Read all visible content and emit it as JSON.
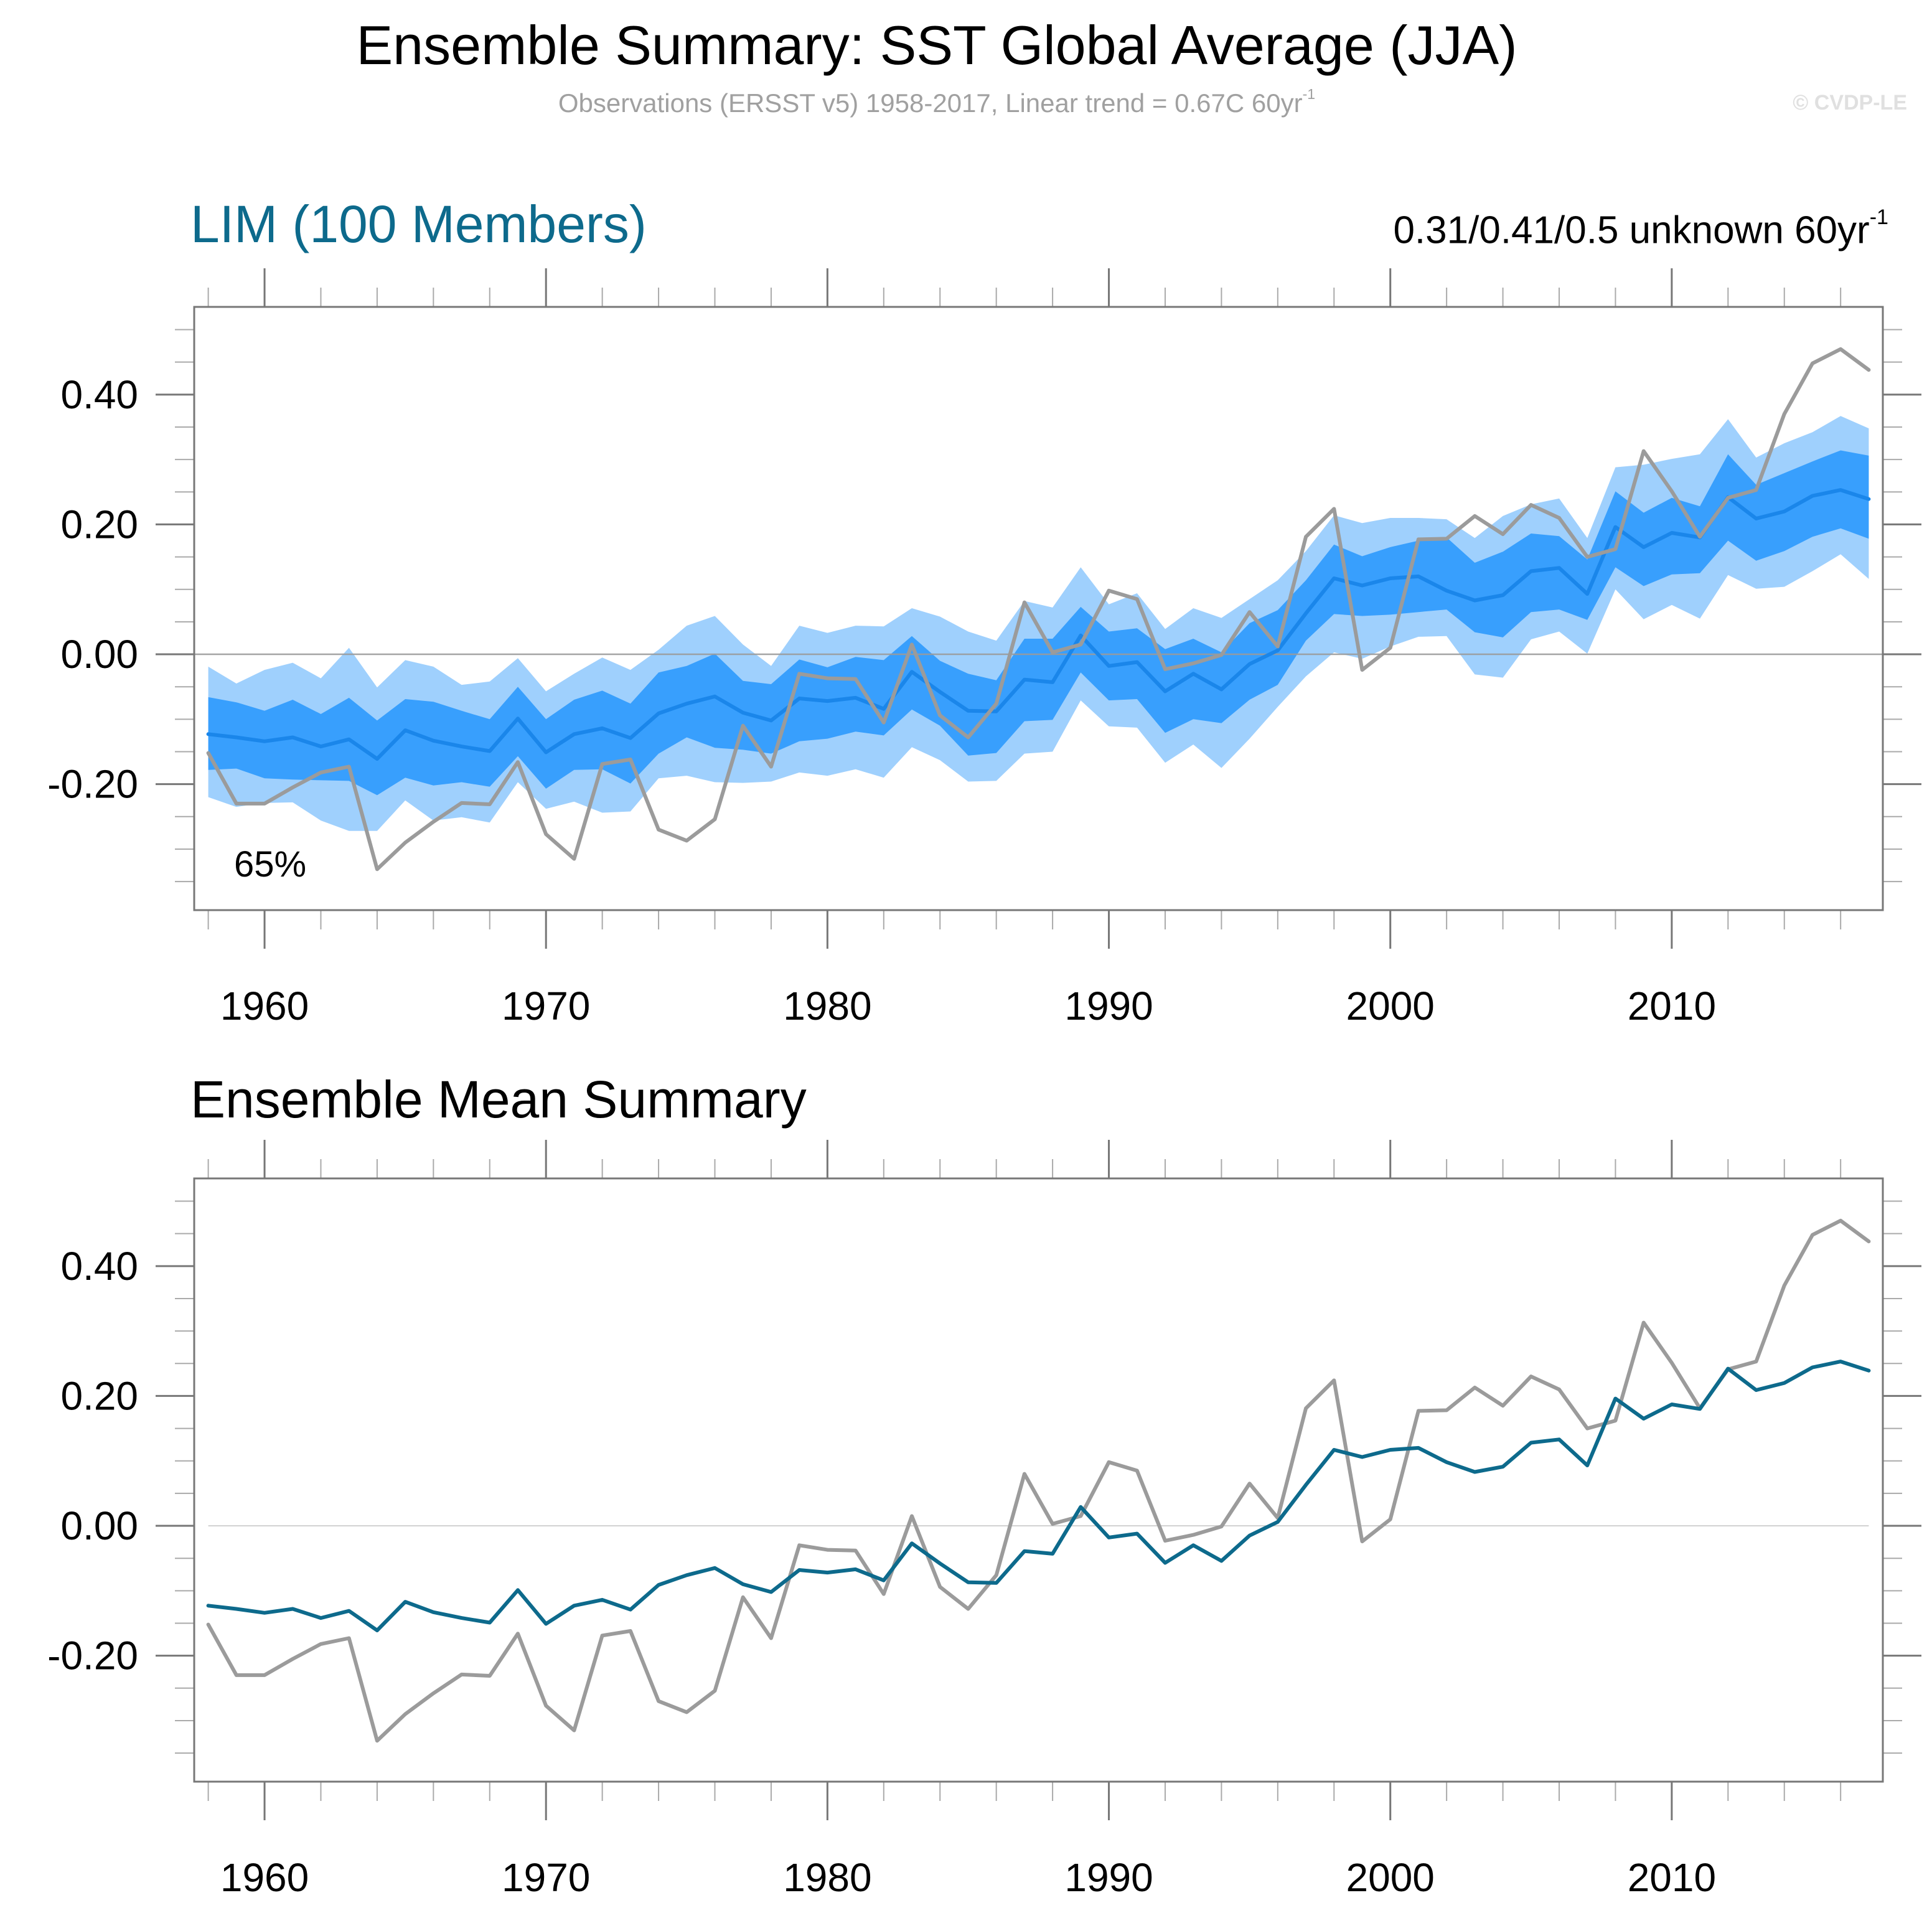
{
  "header": {
    "title": "Ensemble Summary: SST Global Average (JJA)",
    "subtitle": "Observations (ERSST v5) 1958-2017, Linear trend = 0.67C 60yr",
    "subtitle_sup": "-1",
    "copyright": "© CVDP-LE"
  },
  "colors": {
    "light_band": "#9fd0fd",
    "dark_band": "#389ffd",
    "ens_median_line": "#1a86ea",
    "ens_mean_line": "#0d6a8c",
    "obs_line": "#9b9b9b",
    "zero_line": "#9b9b9b",
    "frame": "#777777"
  },
  "chart_data": [
    {
      "type": "area",
      "panel": "ensemble-summary",
      "title": "LIM (100 Members)",
      "trend_text": "0.31/0.41/0.5 unknown 60yr",
      "trend_sup": "-1",
      "annotation": "65%",
      "xlim": [
        1957.5,
        2017.5
      ],
      "ylim": [
        -0.394,
        0.535
      ],
      "xticks": [
        1960,
        1970,
        1980,
        1990,
        2000,
        2010
      ],
      "xtick_labels": [
        "1960",
        "1970",
        "1980",
        "1990",
        "2000",
        "2010"
      ],
      "yticks": [
        -0.2,
        0.0,
        0.2,
        0.4
      ],
      "ytick_labels": [
        "-0.20",
        "0.00",
        "0.20",
        "0.40"
      ],
      "x": [
        1958,
        1959,
        1960,
        1961,
        1962,
        1963,
        1964,
        1965,
        1966,
        1967,
        1968,
        1969,
        1970,
        1971,
        1972,
        1973,
        1974,
        1975,
        1976,
        1977,
        1978,
        1979,
        1980,
        1981,
        1982,
        1983,
        1984,
        1985,
        1986,
        1987,
        1988,
        1989,
        1990,
        1991,
        1992,
        1993,
        1994,
        1995,
        1996,
        1997,
        1998,
        1999,
        2000,
        2001,
        2002,
        2003,
        2004,
        2005,
        2006,
        2007,
        2008,
        2009,
        2010,
        2011,
        2012,
        2013,
        2014,
        2015,
        2016,
        2017
      ],
      "series": [
        {
          "name": "ensemble upper (light)",
          "values": [
            -0.019,
            -0.045,
            -0.024,
            -0.013,
            -0.037,
            0.01,
            -0.051,
            -0.009,
            -0.019,
            -0.047,
            -0.042,
            -0.006,
            -0.057,
            -0.03,
            -0.005,
            -0.024,
            0.007,
            0.044,
            0.059,
            0.015,
            -0.018,
            0.044,
            0.033,
            0.044,
            0.043,
            0.071,
            0.058,
            0.035,
            0.021,
            0.082,
            0.072,
            0.134,
            0.077,
            0.094,
            0.039,
            0.071,
            0.056,
            0.085,
            0.114,
            0.159,
            0.214,
            0.202,
            0.21,
            0.21,
            0.208,
            0.179,
            0.213,
            0.231,
            0.24,
            0.179,
            0.288,
            0.292,
            0.301,
            0.308,
            0.362,
            0.303,
            0.325,
            0.342,
            0.367,
            0.348
          ]
        },
        {
          "name": "ensemble upper (dark)",
          "values": [
            -0.066,
            -0.074,
            -0.087,
            -0.07,
            -0.092,
            -0.067,
            -0.102,
            -0.069,
            -0.073,
            -0.087,
            -0.1,
            -0.05,
            -0.1,
            -0.07,
            -0.056,
            -0.076,
            -0.028,
            -0.018,
            0.001,
            -0.041,
            -0.046,
            -0.008,
            -0.02,
            -0.004,
            -0.009,
            0.028,
            -0.01,
            -0.03,
            -0.04,
            0.024,
            0.024,
            0.073,
            0.035,
            0.04,
            0.008,
            0.024,
            0.003,
            0.048,
            0.068,
            0.114,
            0.169,
            0.151,
            0.165,
            0.175,
            0.18,
            0.141,
            0.158,
            0.186,
            0.182,
            0.146,
            0.251,
            0.218,
            0.241,
            0.228,
            0.308,
            0.261,
            0.279,
            0.297,
            0.314,
            0.306
          ]
        },
        {
          "name": "ensemble mean",
          "values": [
            -0.123,
            -0.128,
            -0.134,
            -0.128,
            -0.142,
            -0.131,
            -0.161,
            -0.117,
            -0.133,
            -0.142,
            -0.149,
            -0.099,
            -0.151,
            -0.123,
            -0.114,
            -0.129,
            -0.091,
            -0.076,
            -0.065,
            -0.09,
            -0.102,
            -0.068,
            -0.072,
            -0.067,
            -0.084,
            -0.027,
            -0.058,
            -0.087,
            -0.088,
            -0.039,
            -0.043,
            0.029,
            -0.018,
            -0.012,
            -0.057,
            -0.03,
            -0.054,
            -0.015,
            0.006,
            0.063,
            0.117,
            0.106,
            0.117,
            0.12,
            0.098,
            0.083,
            0.091,
            0.128,
            0.133,
            0.093,
            0.196,
            0.165,
            0.187,
            0.18,
            0.242,
            0.209,
            0.22,
            0.244,
            0.253,
            0.239
          ]
        },
        {
          "name": "ensemble lower (dark)",
          "values": [
            -0.178,
            -0.176,
            -0.191,
            -0.193,
            -0.194,
            -0.195,
            -0.217,
            -0.19,
            -0.202,
            -0.197,
            -0.204,
            -0.157,
            -0.207,
            -0.178,
            -0.177,
            -0.199,
            -0.153,
            -0.128,
            -0.144,
            -0.147,
            -0.153,
            -0.134,
            -0.13,
            -0.119,
            -0.125,
            -0.085,
            -0.11,
            -0.156,
            -0.152,
            -0.103,
            -0.101,
            -0.028,
            -0.071,
            -0.069,
            -0.121,
            -0.1,
            -0.106,
            -0.07,
            -0.047,
            0.021,
            0.062,
            0.059,
            0.061,
            0.065,
            0.069,
            0.034,
            0.026,
            0.065,
            0.069,
            0.053,
            0.134,
            0.105,
            0.123,
            0.125,
            0.175,
            0.144,
            0.159,
            0.181,
            0.194,
            0.178
          ]
        },
        {
          "name": "ensemble lower (light)",
          "values": [
            -0.22,
            -0.235,
            -0.229,
            -0.228,
            -0.256,
            -0.272,
            -0.272,
            -0.225,
            -0.256,
            -0.251,
            -0.259,
            -0.197,
            -0.238,
            -0.227,
            -0.244,
            -0.242,
            -0.191,
            -0.187,
            -0.197,
            -0.198,
            -0.196,
            -0.182,
            -0.187,
            -0.177,
            -0.19,
            -0.143,
            -0.163,
            -0.196,
            -0.195,
            -0.153,
            -0.15,
            -0.071,
            -0.111,
            -0.113,
            -0.167,
            -0.139,
            -0.175,
            -0.13,
            -0.081,
            -0.034,
            0.003,
            -0.007,
            0.012,
            0.027,
            0.028,
            -0.031,
            -0.036,
            0.023,
            0.035,
            0.001,
            0.1,
            0.054,
            0.076,
            0.055,
            0.122,
            0.101,
            0.104,
            0.128,
            0.154,
            0.116
          ]
        },
        {
          "name": "observations (ERSST v5)",
          "values": [
            -0.152,
            -0.23,
            -0.23,
            -0.205,
            -0.182,
            -0.173,
            -0.331,
            -0.29,
            -0.258,
            -0.229,
            -0.231,
            -0.166,
            -0.277,
            -0.315,
            -0.169,
            -0.162,
            -0.27,
            -0.287,
            -0.254,
            -0.11,
            -0.173,
            -0.03,
            -0.037,
            -0.038,
            -0.105,
            0.015,
            -0.094,
            -0.128,
            -0.076,
            0.08,
            0.003,
            0.015,
            0.098,
            0.085,
            -0.023,
            -0.014,
            -0.001,
            0.065,
            0.012,
            0.181,
            0.224,
            -0.024,
            0.01,
            0.177,
            0.178,
            0.213,
            0.185,
            0.23,
            0.21,
            0.15,
            0.162,
            0.313,
            0.251,
            0.181,
            0.241,
            0.253,
            0.37,
            0.448,
            0.47,
            0.438
          ]
        }
      ]
    },
    {
      "type": "line",
      "panel": "ensemble-mean-summary",
      "title": "Ensemble Mean Summary",
      "xlim": [
        1957.5,
        2017.5
      ],
      "ylim": [
        -0.394,
        0.535
      ],
      "xticks": [
        1960,
        1970,
        1980,
        1990,
        2000,
        2010
      ],
      "xtick_labels": [
        "1960",
        "1970",
        "1980",
        "1990",
        "2000",
        "2010"
      ],
      "yticks": [
        -0.2,
        0.0,
        0.2,
        0.4
      ],
      "ytick_labels": [
        "-0.20",
        "0.00",
        "0.20",
        "0.40"
      ],
      "x": [
        1958,
        1959,
        1960,
        1961,
        1962,
        1963,
        1964,
        1965,
        1966,
        1967,
        1968,
        1969,
        1970,
        1971,
        1972,
        1973,
        1974,
        1975,
        1976,
        1977,
        1978,
        1979,
        1980,
        1981,
        1982,
        1983,
        1984,
        1985,
        1986,
        1987,
        1988,
        1989,
        1990,
        1991,
        1992,
        1993,
        1994,
        1995,
        1996,
        1997,
        1998,
        1999,
        2000,
        2001,
        2002,
        2003,
        2004,
        2005,
        2006,
        2007,
        2008,
        2009,
        2010,
        2011,
        2012,
        2013,
        2014,
        2015,
        2016,
        2017
      ],
      "series": [
        {
          "name": "ensemble mean",
          "values": [
            -0.123,
            -0.128,
            -0.134,
            -0.128,
            -0.142,
            -0.131,
            -0.161,
            -0.117,
            -0.133,
            -0.142,
            -0.149,
            -0.099,
            -0.151,
            -0.123,
            -0.114,
            -0.129,
            -0.091,
            -0.076,
            -0.065,
            -0.09,
            -0.102,
            -0.068,
            -0.072,
            -0.067,
            -0.084,
            -0.027,
            -0.058,
            -0.087,
            -0.088,
            -0.039,
            -0.043,
            0.029,
            -0.018,
            -0.012,
            -0.057,
            -0.03,
            -0.054,
            -0.015,
            0.006,
            0.063,
            0.117,
            0.106,
            0.117,
            0.12,
            0.098,
            0.083,
            0.091,
            0.128,
            0.133,
            0.093,
            0.196,
            0.165,
            0.187,
            0.18,
            0.242,
            0.209,
            0.22,
            0.244,
            0.253,
            0.239
          ]
        },
        {
          "name": "observations (ERSST v5)",
          "values": [
            -0.152,
            -0.23,
            -0.23,
            -0.205,
            -0.182,
            -0.173,
            -0.331,
            -0.29,
            -0.258,
            -0.229,
            -0.231,
            -0.166,
            -0.277,
            -0.315,
            -0.169,
            -0.162,
            -0.27,
            -0.287,
            -0.254,
            -0.11,
            -0.173,
            -0.03,
            -0.037,
            -0.038,
            -0.105,
            0.015,
            -0.094,
            -0.128,
            -0.076,
            0.08,
            0.003,
            0.015,
            0.098,
            0.085,
            -0.023,
            -0.014,
            -0.001,
            0.065,
            0.012,
            0.181,
            0.224,
            -0.024,
            0.01,
            0.177,
            0.178,
            0.213,
            0.185,
            0.23,
            0.21,
            0.15,
            0.162,
            0.313,
            0.251,
            0.181,
            0.241,
            0.253,
            0.37,
            0.448,
            0.47,
            0.438
          ]
        }
      ]
    }
  ]
}
